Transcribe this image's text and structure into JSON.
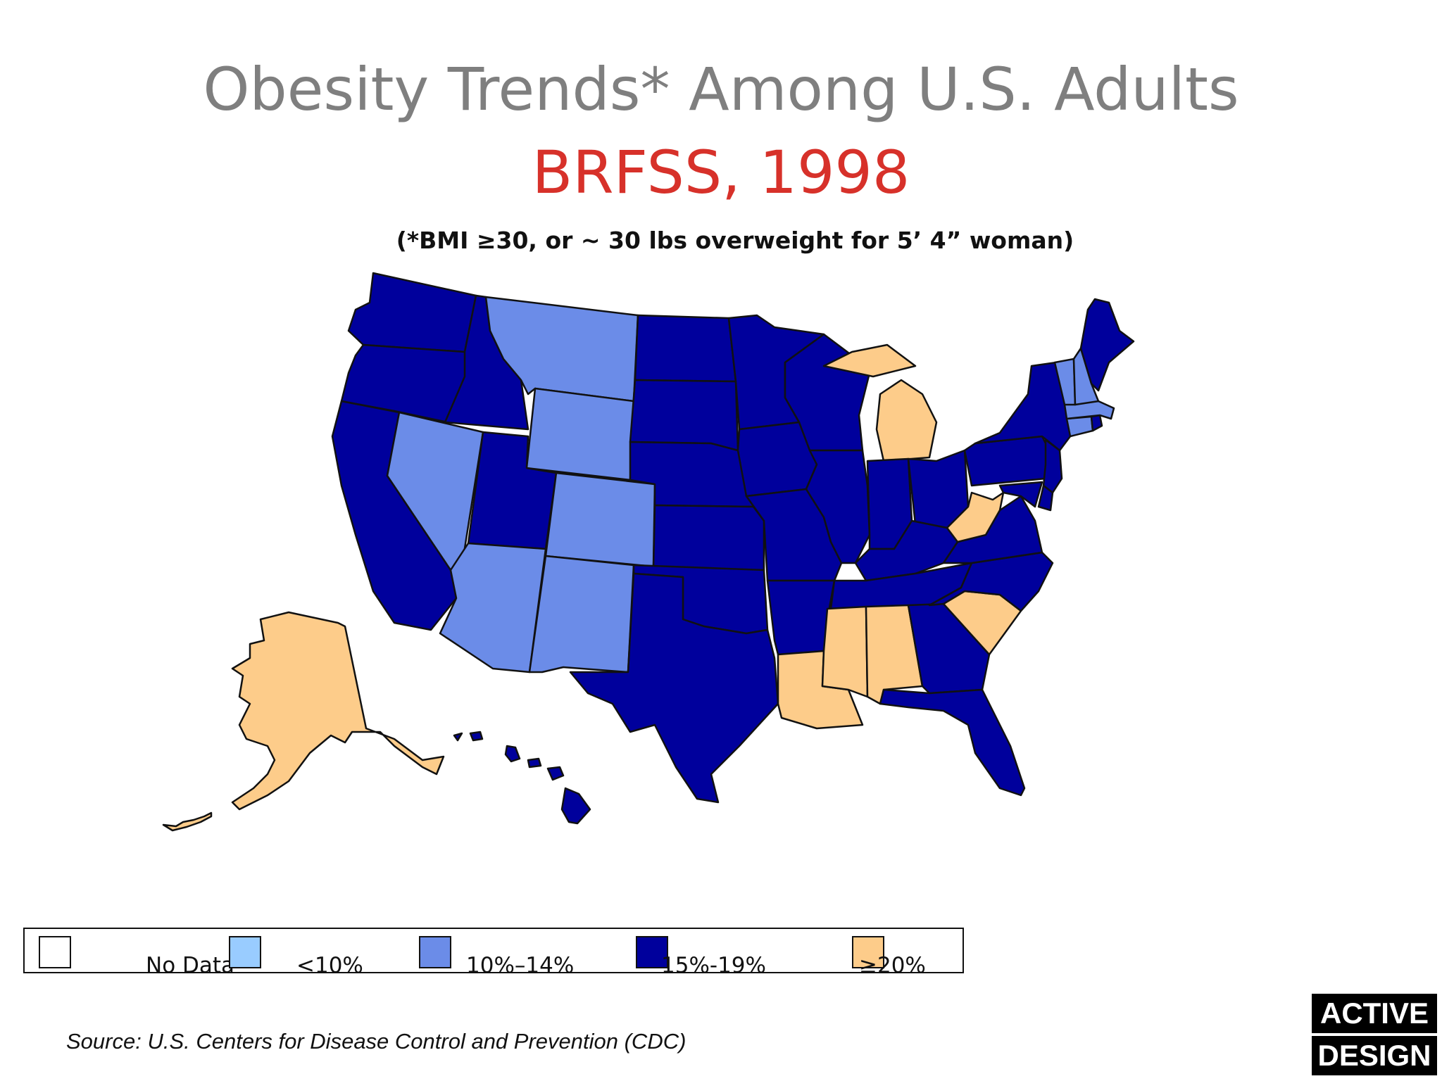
{
  "title": "Obesity Trends* Among U.S. Adults",
  "subtitle": "BRFSS, 1998",
  "footnote": "(*BMI ≥30, or ~ 30 lbs overweight for 5’ 4” woman)",
  "colors": {
    "no_data": "#ffffff",
    "lt10": "#99ccff",
    "c10_14": "#6b8ce8",
    "c15_19": "#00009c",
    "c20plus": "#fdcc8a",
    "title": "#7f7f7f",
    "subtitle": "#d7312a"
  },
  "legend": [
    {
      "label": "No Data",
      "color_key": "no_data"
    },
    {
      "label": "<10%",
      "color_key": "lt10"
    },
    {
      "label": "10%–14%",
      "color_key": "c10_14"
    },
    {
      "label": "15%-19%",
      "color_key": "c15_19"
    },
    {
      "label": "≥20%",
      "color_key": "c20plus"
    }
  ],
  "states": {
    "WA": "c15_19",
    "OR": "c15_19",
    "CA": "c15_19",
    "ID": "c15_19",
    "NV": "c10_14",
    "MT": "c10_14",
    "WY": "c10_14",
    "UT": "c15_19",
    "AZ": "c10_14",
    "CO": "c10_14",
    "NM": "c10_14",
    "ND": "c15_19",
    "SD": "c15_19",
    "NE": "c15_19",
    "KS": "c15_19",
    "OK": "c15_19",
    "TX": "c15_19",
    "MN": "c15_19",
    "IA": "c15_19",
    "MO": "c15_19",
    "AR": "c15_19",
    "LA": "c20plus",
    "WI": "c15_19",
    "IL": "c15_19",
    "MI": "c20plus",
    "IN": "c15_19",
    "OH": "c15_19",
    "KY": "c15_19",
    "TN": "c15_19",
    "MS": "c20plus",
    "AL": "c20plus",
    "GA": "c15_19",
    "FL": "c15_19",
    "SC": "c20plus",
    "NC": "c15_19",
    "VA": "c15_19",
    "WV": "c20plus",
    "PA": "c15_19",
    "NY": "c15_19",
    "NJ": "c15_19",
    "DE": "c15_19",
    "MD": "c15_19",
    "CT": "c10_14",
    "RI": "c15_19",
    "MA": "c10_14",
    "VT": "c10_14",
    "NH": "c10_14",
    "ME": "c15_19",
    "AK": "c20plus",
    "HI": "c15_19"
  },
  "source": "Source: U.S. Centers for Disease Control and Prevention (CDC)",
  "logo": {
    "line1": "ACTIVE",
    "line2": "DESIGN"
  }
}
